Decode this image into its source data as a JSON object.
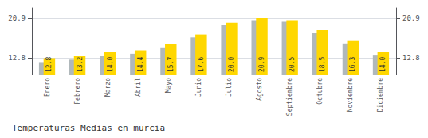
{
  "chart_data": {
    "type": "bar",
    "title": "Temperaturas Medias en murcia",
    "categories": [
      "Enero",
      "Febrero",
      "Marzo",
      "Abril",
      "Mayo",
      "Junio",
      "Julio",
      "Agosto",
      "Septiembre",
      "Octubre",
      "Noviembre",
      "Diciembre"
    ],
    "series": [
      {
        "color": "#B0B8BB",
        "values": [
          12.0,
          12.5,
          13.3,
          13.7,
          15.0,
          17.0,
          19.5,
          20.5,
          20.2,
          18.0,
          15.8,
          13.5
        ]
      },
      {
        "color": "#FFD700",
        "data_labels": true,
        "values": [
          12.8,
          13.2,
          14.0,
          14.4,
          15.7,
          17.6,
          20.0,
          20.9,
          20.5,
          18.5,
          16.3,
          14.0
        ],
        "value_labels": [
          "12.8",
          "13.2",
          "14.0",
          "14.4",
          "15.7",
          "17.6",
          "20.0",
          "20.9",
          "20.5",
          "18.5",
          "16.3",
          "14.0"
        ]
      }
    ],
    "ylim": [
      9.5,
      23.0
    ],
    "yticks": [
      12.8,
      20.9
    ],
    "y2lim": [
      9.5,
      23.0
    ],
    "y2ticks": [
      12.8,
      20.9
    ],
    "grid": true
  }
}
